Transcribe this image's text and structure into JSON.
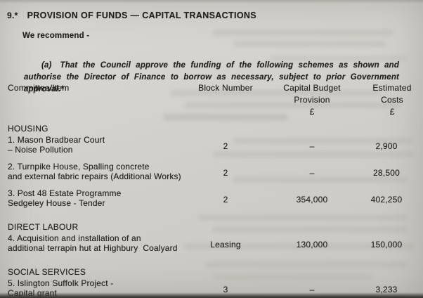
{
  "doc": {
    "item_number": "9.*",
    "title": "PROVISION OF FUNDS — CAPITAL TRANSACTIONS",
    "recommend_label": "We recommend -",
    "clause_marker": "(a)",
    "clause_text": "That the Council approve the funding of the following schemes as shown and authorise the Director of Finance to borrow as necessary, subject to prior Government approval.*"
  },
  "table": {
    "headers": {
      "committee": "Committee/Item",
      "block": "Block Number",
      "provision_line1": "Capital Budget",
      "provision_line2": "Provision",
      "costs_line1": "Estimated",
      "costs_line2": "Costs",
      "currency": "£"
    },
    "sections": [
      {
        "name": "HOUSING",
        "rows": [
          {
            "item_lines": [
              "1. Mason Bradbear Court",
              "– Noise Pollution"
            ],
            "block": "2",
            "provision": "–",
            "costs": "2,900"
          },
          {
            "item_lines": [
              "2. Turnpike House, Spalling concrete",
              "and external fabric repairs (Additional Works)"
            ],
            "block": "2",
            "provision": "–",
            "costs": "28,500"
          },
          {
            "item_lines": [
              "3. Post 48 Estate Programme",
              "Sedgeley House - Tender"
            ],
            "block": "2",
            "provision": "354,000",
            "costs": "402,250"
          }
        ]
      },
      {
        "name": "DIRECT LABOUR",
        "rows": [
          {
            "item_lines": [
              "4. Acquisition and installation of an",
              "additional terrapin hut at Highbury  Coalyard"
            ],
            "block": "Leasing",
            "provision": "130,000",
            "costs": "150,000"
          }
        ]
      },
      {
        "name": "SOCIAL SERVICES",
        "rows": [
          {
            "item_lines": [
              "5. Islington Suffolk Project -",
              "Capital grant"
            ],
            "block": "3",
            "provision": "–",
            "costs": "3,233"
          }
        ]
      }
    ]
  }
}
